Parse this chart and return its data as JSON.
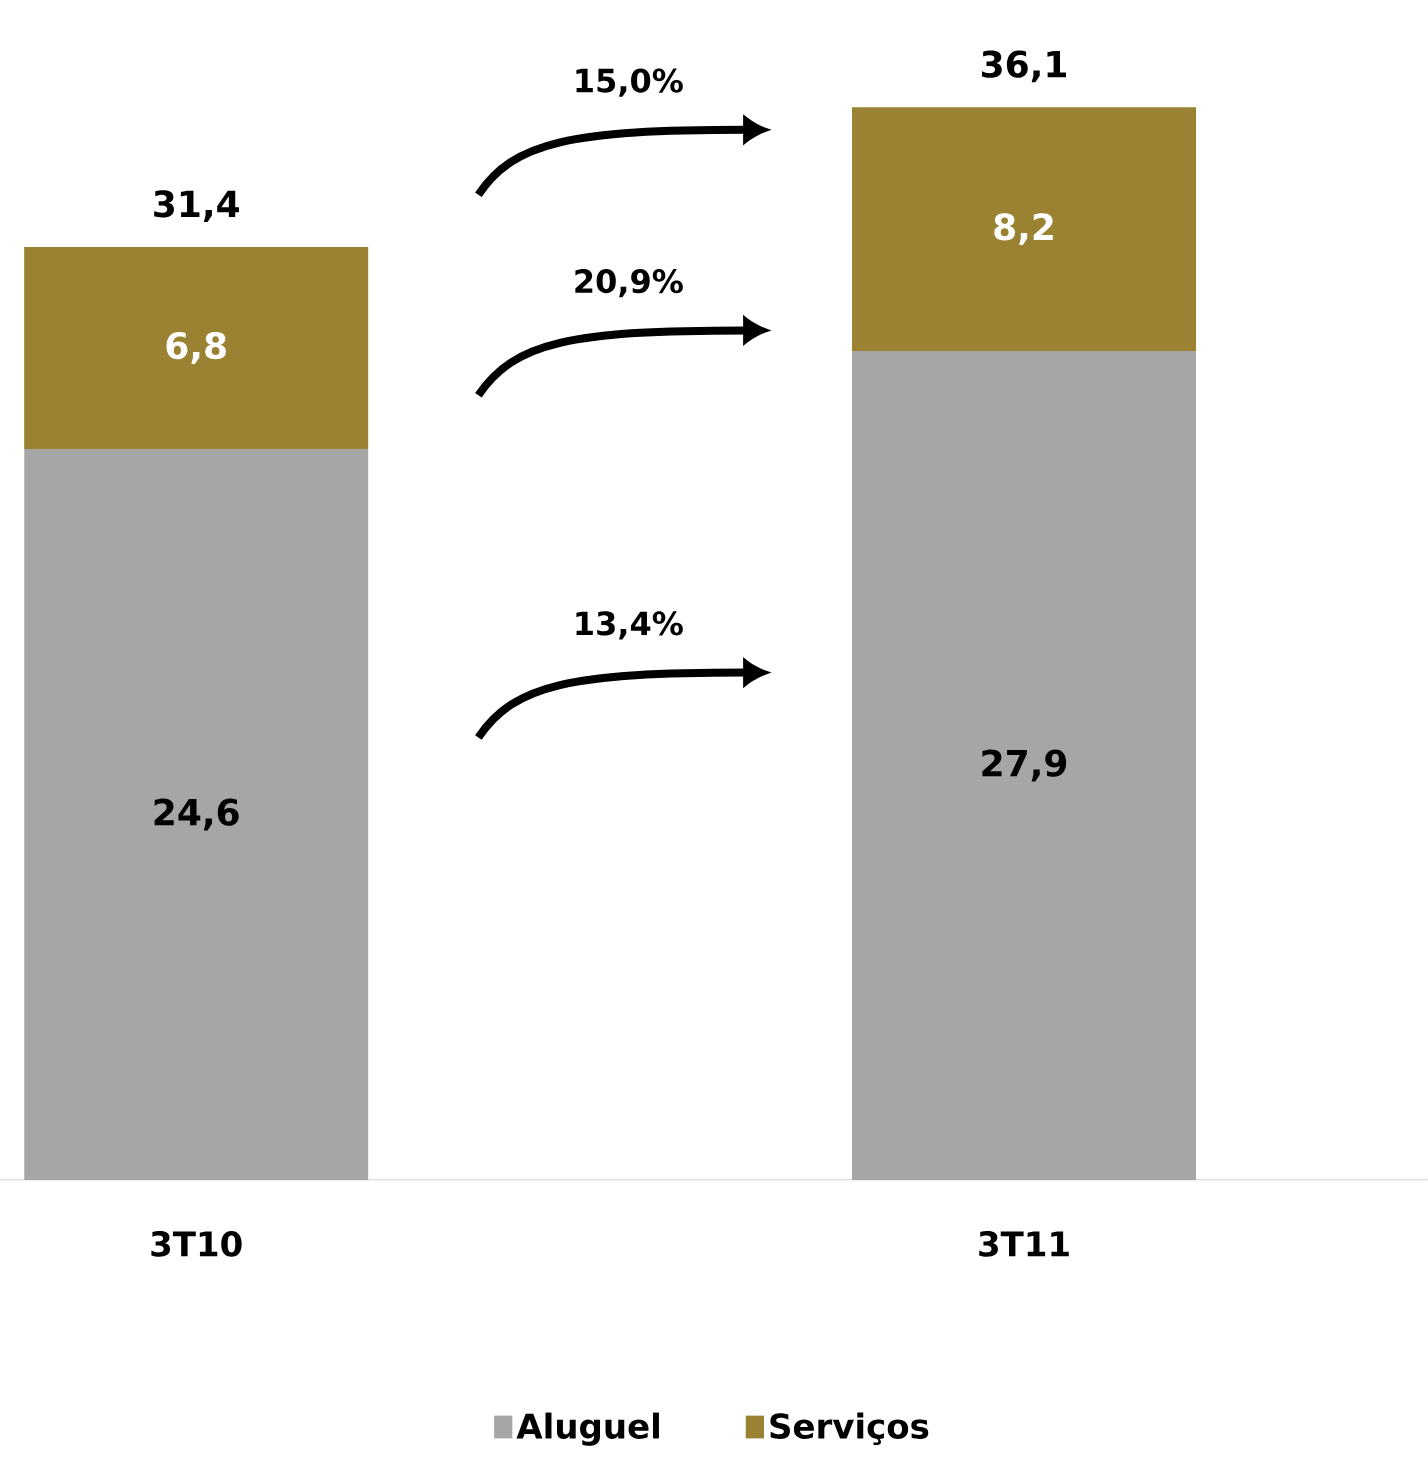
{
  "chart_data": {
    "type": "bar",
    "stacked": true,
    "categories": [
      "3T10",
      "3T11"
    ],
    "series": [
      {
        "name": "Aluguel",
        "color": "#a6a6a6",
        "values": [
          24.6,
          27.9
        ],
        "value_labels": [
          "24,6",
          "27,9"
        ]
      },
      {
        "name": "Serviços",
        "color": "#9a8232",
        "values": [
          6.8,
          8.2
        ],
        "value_labels": [
          "6,8",
          "8,2"
        ]
      }
    ],
    "totals": [
      "31,4",
      "36,1"
    ],
    "annotations": [
      "15,0%",
      "20,9%",
      "13,4%"
    ],
    "legend": "bottom",
    "tick_labels": "x"
  }
}
